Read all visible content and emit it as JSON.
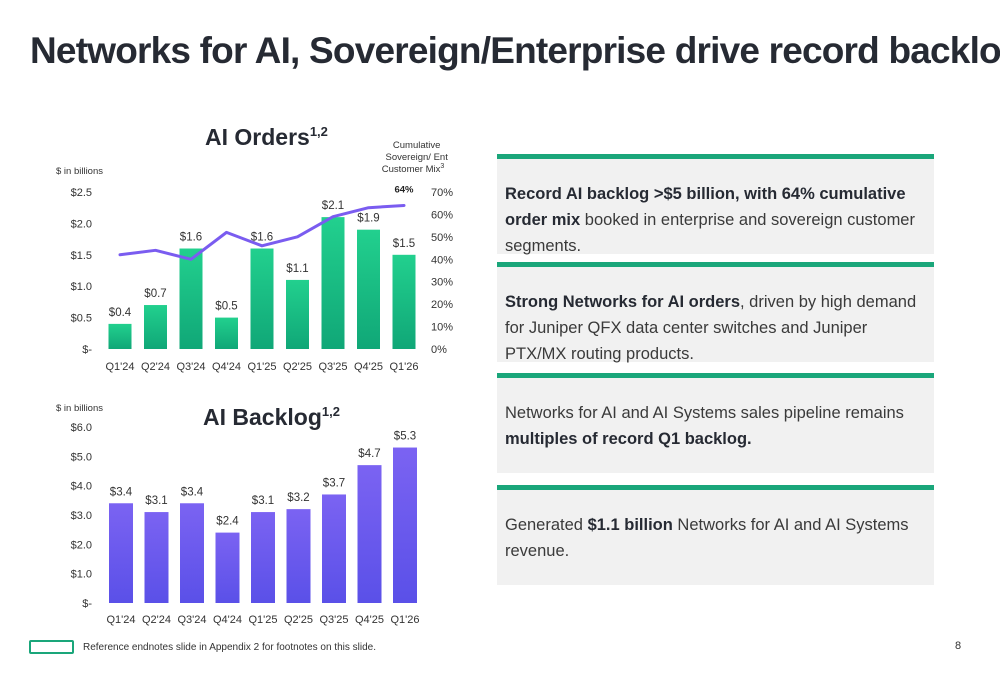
{
  "page": {
    "title": "Networks for AI, Sovereign/Enterprise drive record backlog",
    "footnote": "Reference endnotes slide in Appendix 2 for footnotes on this slide.",
    "page_number": "8"
  },
  "colors": {
    "accent_green": "#1aa67a",
    "bar_green_top": "#22d08e",
    "bar_green_bottom": "#10a777",
    "bar_purple_top": "#7b63f2",
    "bar_purple_bottom": "#5a50e8",
    "line_purple": "#7a5cf0",
    "card_background": "#f1f1f1"
  },
  "cards": [
    {
      "segments": [
        {
          "text": "Record AI backlog >$5 billion, with 64% cumulative order mix",
          "bold": true
        },
        {
          "text": " booked in enterprise and sovereign customer segments.",
          "bold": false
        }
      ]
    },
    {
      "segments": [
        {
          "text": "Strong Networks for AI orders",
          "bold": true
        },
        {
          "text": ", driven by high demand for Juniper QFX data center switches and Juniper PTX/MX routing products.",
          "bold": false
        }
      ]
    },
    {
      "segments": [
        {
          "text": "Networks for AI and AI Systems sales pipeline remains ",
          "bold": false
        },
        {
          "text": "multiples of record Q1 backlog.",
          "bold": true
        }
      ]
    },
    {
      "segments": [
        {
          "text": "Generated ",
          "bold": false
        },
        {
          "text": "$1.1 billion",
          "bold": true
        },
        {
          "text": " Networks for AI and AI Systems revenue.",
          "bold": false
        }
      ]
    }
  ],
  "chart_data": [
    {
      "type": "bar",
      "title": "AI Orders",
      "title_superscript": "1,2",
      "ylabel": "$ in billions",
      "categories": [
        "Q1'24",
        "Q2'24",
        "Q3'24",
        "Q4'24",
        "Q1'25",
        "Q2'25",
        "Q3'25",
        "Q4'25",
        "Q1'26"
      ],
      "values": [
        0.4,
        0.7,
        1.6,
        0.5,
        1.6,
        1.1,
        2.1,
        1.9,
        1.5
      ],
      "value_labels": [
        "$0.4",
        "$0.7",
        "$1.6",
        "$0.5",
        "$1.6",
        "$1.1",
        "$2.1",
        "$1.9",
        "$1.5"
      ],
      "ylim": [
        0,
        2.5
      ],
      "y_ticks": [
        0,
        0.5,
        1.0,
        1.5,
        2.0,
        2.5
      ],
      "y_tick_labels": [
        "$-",
        "$0.5",
        "$1.0",
        "$1.5",
        "$2.0",
        "$2.5"
      ],
      "secondary_axis": {
        "label_lines": [
          "Cumulative",
          "Sovereign/ Ent",
          "Customer Mix"
        ],
        "label_superscript": "3",
        "ylim": [
          0,
          70
        ],
        "y_ticks": [
          0,
          10,
          20,
          30,
          40,
          50,
          60,
          70
        ],
        "y_tick_labels": [
          "0%",
          "10%",
          "20%",
          "30%",
          "40%",
          "50%",
          "60%",
          "70%"
        ],
        "series": {
          "type": "line",
          "values": [
            42,
            44,
            40,
            52,
            46,
            50,
            59,
            63,
            64
          ],
          "end_label": "64%"
        }
      },
      "grid": false,
      "legend": "none"
    },
    {
      "type": "bar",
      "title": "AI Backlog",
      "title_superscript": "1,2",
      "ylabel": "$ in billions",
      "categories": [
        "Q1'24",
        "Q2'24",
        "Q3'24",
        "Q4'24",
        "Q1'25",
        "Q2'25",
        "Q3'25",
        "Q4'25",
        "Q1'26"
      ],
      "values": [
        3.4,
        3.1,
        3.4,
        2.4,
        3.1,
        3.2,
        3.7,
        4.7,
        5.3
      ],
      "value_labels": [
        "$3.4",
        "$3.1",
        "$3.4",
        "$2.4",
        "$3.1",
        "$3.2",
        "$3.7",
        "$4.7",
        "$5.3"
      ],
      "ylim": [
        0,
        6.0
      ],
      "y_ticks": [
        0,
        1,
        2,
        3,
        4,
        5,
        6
      ],
      "y_tick_labels": [
        "$-",
        "$1.0",
        "$2.0",
        "$3.0",
        "$4.0",
        "$5.0",
        "$6.0"
      ],
      "grid": false,
      "legend": "none"
    }
  ]
}
